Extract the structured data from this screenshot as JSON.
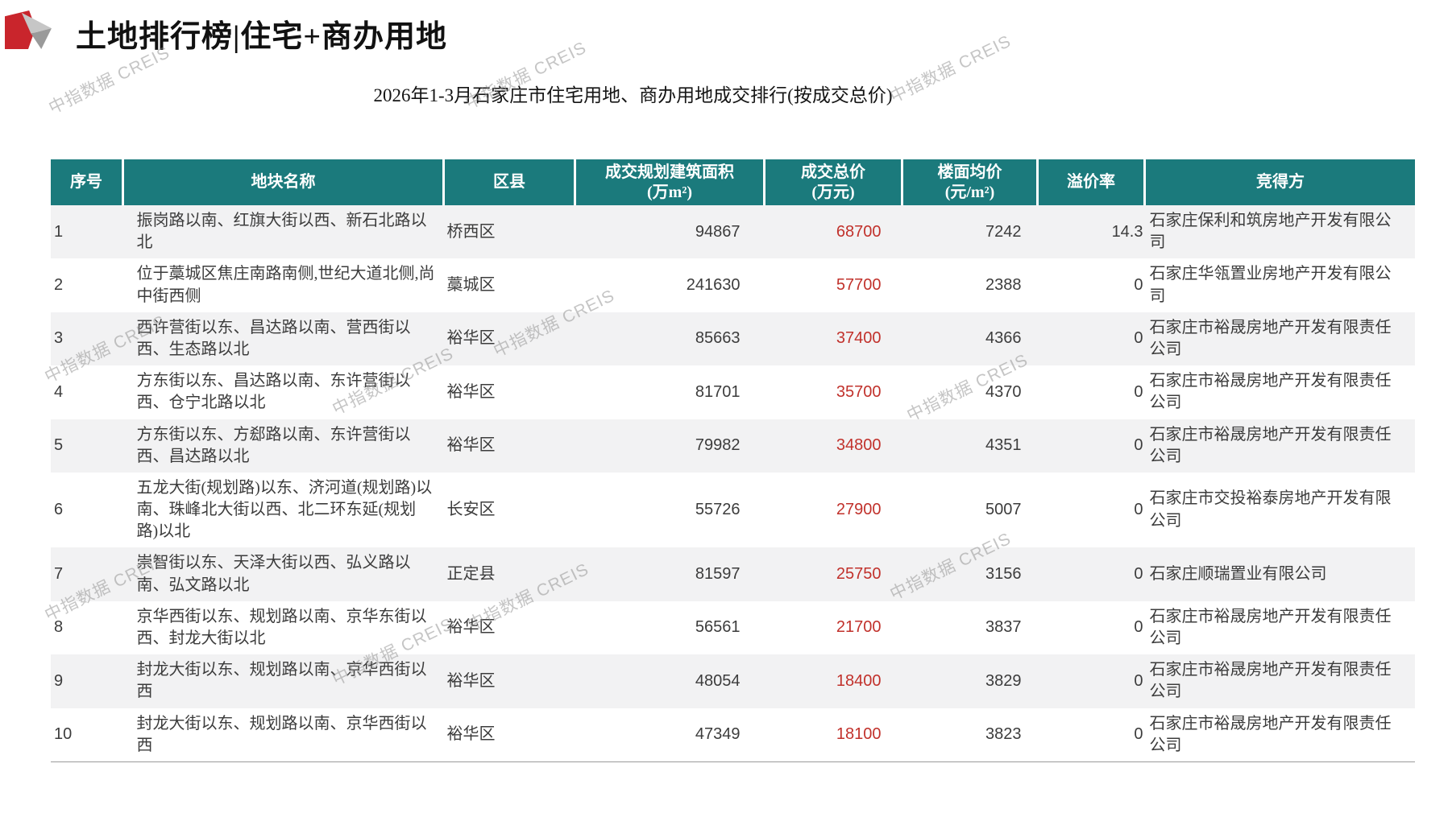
{
  "page": {
    "title": "土地排行榜|住宅+商办用地",
    "subtitle": "2026年1-3月石家庄市住宅用地、商办用地成交排行(按成交总价)",
    "watermark": "中指数据 CREIS"
  },
  "colors": {
    "header_bg": "#1b7a7c",
    "price_red": "#c1312b",
    "logo_red": "#c9252c",
    "stripe_gray": "#f2f2f3"
  },
  "table": {
    "columns": [
      {
        "key": "rank",
        "label": "序号",
        "unit": ""
      },
      {
        "key": "name",
        "label": "地块名称",
        "unit": ""
      },
      {
        "key": "district",
        "label": "区县",
        "unit": ""
      },
      {
        "key": "area",
        "label": "成交规划建筑面积",
        "unit": "(万m²)"
      },
      {
        "key": "price",
        "label": "成交总价",
        "unit": "(万元)"
      },
      {
        "key": "floor_price",
        "label": "楼面均价",
        "unit": "(元/m²)"
      },
      {
        "key": "premium",
        "label": "溢价率",
        "unit": ""
      },
      {
        "key": "winner",
        "label": "竞得方",
        "unit": ""
      }
    ],
    "rows": [
      {
        "rank": "1",
        "name": "振岗路以南、红旗大街以西、新石北路以北",
        "district": "桥西区",
        "area": "94867",
        "price": "68700",
        "floor_price": "7242",
        "premium": "14.3",
        "winner": "石家庄保利和筑房地产开发有限公司"
      },
      {
        "rank": "2",
        "name": "位于藁城区焦庄南路南侧,世纪大道北侧,尚中街西侧",
        "district": "藁城区",
        "area": "241630",
        "price": "57700",
        "floor_price": "2388",
        "premium": "0",
        "winner": "石家庄华瓴置业房地产开发有限公司"
      },
      {
        "rank": "3",
        "name": "西许营街以东、昌达路以南、营西街以西、生态路以北",
        "district": "裕华区",
        "area": "85663",
        "price": "37400",
        "floor_price": "4366",
        "premium": "0",
        "winner": "石家庄市裕晟房地产开发有限责任公司"
      },
      {
        "rank": "4",
        "name": "方东街以东、昌达路以南、东许营街以西、仓宁北路以北",
        "district": "裕华区",
        "area": "81701",
        "price": "35700",
        "floor_price": "4370",
        "premium": "0",
        "winner": "石家庄市裕晟房地产开发有限责任公司"
      },
      {
        "rank": "5",
        "name": "方东街以东、方郄路以南、东许营街以西、昌达路以北",
        "district": "裕华区",
        "area": "79982",
        "price": "34800",
        "floor_price": "4351",
        "premium": "0",
        "winner": "石家庄市裕晟房地产开发有限责任公司"
      },
      {
        "rank": "6",
        "name": "五龙大街(规划路)以东、济河道(规划路)以南、珠峰北大街以西、北二环东延(规划路)以北",
        "district": "长安区",
        "area": "55726",
        "price": "27900",
        "floor_price": "5007",
        "premium": "0",
        "winner": "石家庄市交投裕泰房地产开发有限公司"
      },
      {
        "rank": "7",
        "name": "崇智街以东、天泽大街以西、弘义路以南、弘文路以北",
        "district": "正定县",
        "area": "81597",
        "price": "25750",
        "floor_price": "3156",
        "premium": "0",
        "winner": "石家庄顺瑞置业有限公司"
      },
      {
        "rank": "8",
        "name": "京华西街以东、规划路以南、京华东街以西、封龙大街以北",
        "district": "裕华区",
        "area": "56561",
        "price": "21700",
        "floor_price": "3837",
        "premium": "0",
        "winner": "石家庄市裕晟房地产开发有限责任公司"
      },
      {
        "rank": "9",
        "name": "封龙大街以东、规划路以南、京华西街以西",
        "district": "裕华区",
        "area": "48054",
        "price": "18400",
        "floor_price": "3829",
        "premium": "0",
        "winner": "石家庄市裕晟房地产开发有限责任公司"
      },
      {
        "rank": "10",
        "name": "封龙大街以东、规划路以南、京华西街以西",
        "district": "裕华区",
        "area": "47349",
        "price": "18100",
        "floor_price": "3823",
        "premium": "0",
        "winner": "石家庄市裕晟房地产开发有限责任公司"
      }
    ]
  }
}
